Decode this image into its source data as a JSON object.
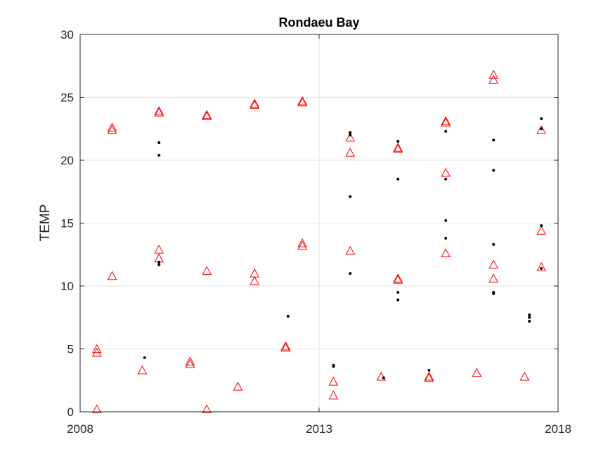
{
  "chart_data": {
    "type": "scatter",
    "title": "Rondaeu Bay",
    "xlabel": "",
    "ylabel": "TEMP",
    "xlim": [
      2008,
      2018
    ],
    "ylim": [
      0,
      30
    ],
    "xticks": [
      2008,
      2013,
      2018
    ],
    "yticks": [
      0,
      5,
      10,
      15,
      20,
      25,
      30
    ],
    "grid": true,
    "series": [
      {
        "marker": "triangle",
        "color": "#ff0000",
        "points": [
          [
            2008.35,
            5.0
          ],
          [
            2008.35,
            4.7
          ],
          [
            2008.35,
            0.2
          ],
          [
            2008.67,
            22.6
          ],
          [
            2008.67,
            22.4
          ],
          [
            2008.67,
            10.8
          ],
          [
            2009.3,
            3.3
          ],
          [
            2009.65,
            23.9
          ],
          [
            2009.65,
            23.8
          ],
          [
            2009.65,
            12.9
          ],
          [
            2009.65,
            12.2
          ],
          [
            2010.3,
            4.0
          ],
          [
            2010.3,
            3.8
          ],
          [
            2010.65,
            23.6
          ],
          [
            2010.65,
            23.5
          ],
          [
            2010.65,
            11.2
          ],
          [
            2010.65,
            0.2
          ],
          [
            2011.3,
            2.0
          ],
          [
            2011.65,
            24.5
          ],
          [
            2011.65,
            24.4
          ],
          [
            2011.65,
            11.0
          ],
          [
            2011.65,
            10.4
          ],
          [
            2012.3,
            5.2
          ],
          [
            2012.3,
            5.1
          ],
          [
            2012.65,
            24.7
          ],
          [
            2012.65,
            24.6
          ],
          [
            2012.65,
            13.4
          ],
          [
            2012.65,
            13.2
          ],
          [
            2013.3,
            2.4
          ],
          [
            2013.3,
            1.3
          ],
          [
            2013.65,
            21.8
          ],
          [
            2013.65,
            20.6
          ],
          [
            2013.65,
            12.8
          ],
          [
            2014.3,
            2.8
          ],
          [
            2014.65,
            21.0
          ],
          [
            2014.65,
            20.9
          ],
          [
            2014.65,
            10.6
          ],
          [
            2014.65,
            10.5
          ],
          [
            2015.3,
            2.8
          ],
          [
            2015.3,
            2.7
          ],
          [
            2015.65,
            23.1
          ],
          [
            2015.65,
            23.0
          ],
          [
            2015.65,
            19.0
          ],
          [
            2015.65,
            12.6
          ],
          [
            2016.3,
            3.1
          ],
          [
            2016.65,
            26.8
          ],
          [
            2016.65,
            26.4
          ],
          [
            2016.65,
            11.7
          ],
          [
            2016.65,
            10.6
          ],
          [
            2017.3,
            2.8
          ],
          [
            2017.65,
            22.4
          ],
          [
            2017.65,
            14.4
          ],
          [
            2017.65,
            11.5
          ]
        ]
      },
      {
        "marker": "dot",
        "color": "#000000",
        "points": [
          [
            2009.35,
            4.3
          ],
          [
            2009.65,
            21.4
          ],
          [
            2009.65,
            20.4
          ],
          [
            2009.65,
            11.9
          ],
          [
            2009.65,
            11.7
          ],
          [
            2012.35,
            7.6
          ],
          [
            2013.3,
            3.7
          ],
          [
            2013.3,
            3.6
          ],
          [
            2013.65,
            22.2
          ],
          [
            2013.65,
            22.0
          ],
          [
            2013.65,
            17.1
          ],
          [
            2013.65,
            11.0
          ],
          [
            2014.35,
            2.7
          ],
          [
            2014.65,
            21.5
          ],
          [
            2014.65,
            18.5
          ],
          [
            2014.65,
            9.5
          ],
          [
            2014.65,
            8.9
          ],
          [
            2015.3,
            3.3
          ],
          [
            2015.65,
            22.3
          ],
          [
            2015.65,
            18.5
          ],
          [
            2015.65,
            15.2
          ],
          [
            2015.65,
            13.8
          ],
          [
            2016.65,
            21.6
          ],
          [
            2016.65,
            19.2
          ],
          [
            2016.65,
            13.3
          ],
          [
            2016.65,
            9.5
          ],
          [
            2016.65,
            9.4
          ],
          [
            2017.4,
            7.7
          ],
          [
            2017.4,
            7.5
          ],
          [
            2017.4,
            7.2
          ],
          [
            2017.65,
            23.3
          ],
          [
            2017.65,
            22.5
          ],
          [
            2017.65,
            14.8
          ],
          [
            2017.65,
            11.4
          ]
        ]
      }
    ]
  }
}
